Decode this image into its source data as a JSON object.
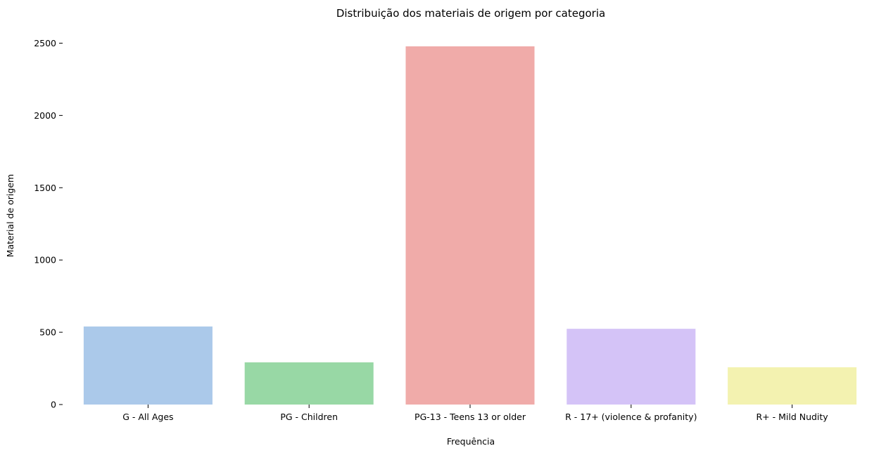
{
  "chart_data": {
    "type": "bar",
    "title": "Distribuição dos materiais de origem por categoria",
    "xlabel": "Frequência",
    "ylabel": "Material de origem",
    "categories": [
      "G - All Ages",
      "PG - Children",
      "PG-13 - Teens 13 or older",
      "R - 17+ (violence & profanity)",
      "R+ - Mild Nudity"
    ],
    "values": [
      540,
      292,
      2478,
      524,
      258
    ],
    "colors": [
      "#abc9ea",
      "#98d8a5",
      "#f0aba9",
      "#d4c3f7",
      "#f3f2b0"
    ],
    "ylim": [
      0,
      2580
    ],
    "yticks": [
      0,
      500,
      1000,
      1500,
      2000,
      2500
    ],
    "ytick_labels": [
      "0",
      "500",
      "1000",
      "1500",
      "2000",
      "2500"
    ],
    "grid": false,
    "legend": "none"
  }
}
